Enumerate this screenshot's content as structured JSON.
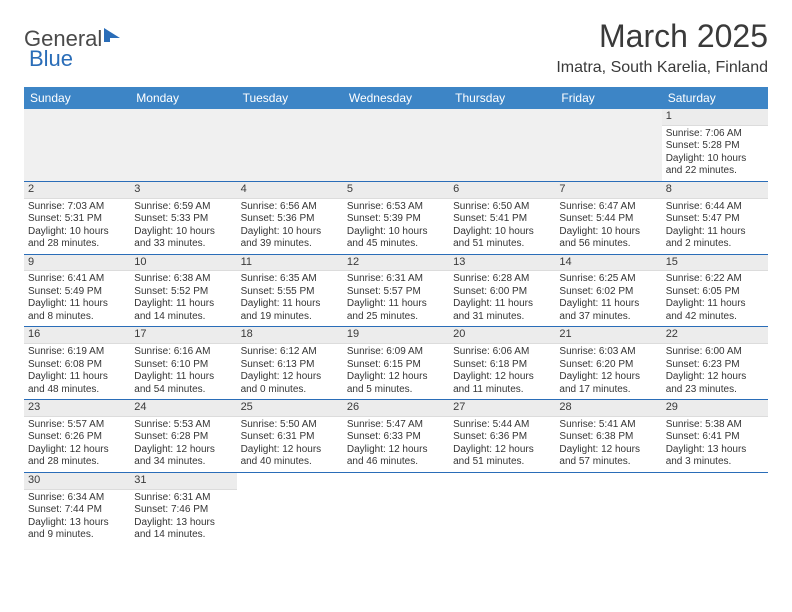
{
  "logo": {
    "text_a": "General",
    "text_b": "Blue"
  },
  "title": "March 2025",
  "location": "Imatra, South Karelia, Finland",
  "colors": {
    "header_bg": "#3d85c6",
    "header_text": "#ffffff",
    "row_divider": "#2a6db8",
    "daynum_bg": "#ececec",
    "text": "#353535",
    "logo_gray": "#4a4a4a",
    "logo_blue": "#2a6db8"
  },
  "weekdays": [
    "Sunday",
    "Monday",
    "Tuesday",
    "Wednesday",
    "Thursday",
    "Friday",
    "Saturday"
  ],
  "weeks": [
    [
      null,
      null,
      null,
      null,
      null,
      null,
      {
        "n": "1",
        "sr": "7:06 AM",
        "ss": "5:28 PM",
        "dl": "10 hours and 22 minutes."
      }
    ],
    [
      {
        "n": "2",
        "sr": "7:03 AM",
        "ss": "5:31 PM",
        "dl": "10 hours and 28 minutes."
      },
      {
        "n": "3",
        "sr": "6:59 AM",
        "ss": "5:33 PM",
        "dl": "10 hours and 33 minutes."
      },
      {
        "n": "4",
        "sr": "6:56 AM",
        "ss": "5:36 PM",
        "dl": "10 hours and 39 minutes."
      },
      {
        "n": "5",
        "sr": "6:53 AM",
        "ss": "5:39 PM",
        "dl": "10 hours and 45 minutes."
      },
      {
        "n": "6",
        "sr": "6:50 AM",
        "ss": "5:41 PM",
        "dl": "10 hours and 51 minutes."
      },
      {
        "n": "7",
        "sr": "6:47 AM",
        "ss": "5:44 PM",
        "dl": "10 hours and 56 minutes."
      },
      {
        "n": "8",
        "sr": "6:44 AM",
        "ss": "5:47 PM",
        "dl": "11 hours and 2 minutes."
      }
    ],
    [
      {
        "n": "9",
        "sr": "6:41 AM",
        "ss": "5:49 PM",
        "dl": "11 hours and 8 minutes."
      },
      {
        "n": "10",
        "sr": "6:38 AM",
        "ss": "5:52 PM",
        "dl": "11 hours and 14 minutes."
      },
      {
        "n": "11",
        "sr": "6:35 AM",
        "ss": "5:55 PM",
        "dl": "11 hours and 19 minutes."
      },
      {
        "n": "12",
        "sr": "6:31 AM",
        "ss": "5:57 PM",
        "dl": "11 hours and 25 minutes."
      },
      {
        "n": "13",
        "sr": "6:28 AM",
        "ss": "6:00 PM",
        "dl": "11 hours and 31 minutes."
      },
      {
        "n": "14",
        "sr": "6:25 AM",
        "ss": "6:02 PM",
        "dl": "11 hours and 37 minutes."
      },
      {
        "n": "15",
        "sr": "6:22 AM",
        "ss": "6:05 PM",
        "dl": "11 hours and 42 minutes."
      }
    ],
    [
      {
        "n": "16",
        "sr": "6:19 AM",
        "ss": "6:08 PM",
        "dl": "11 hours and 48 minutes."
      },
      {
        "n": "17",
        "sr": "6:16 AM",
        "ss": "6:10 PM",
        "dl": "11 hours and 54 minutes."
      },
      {
        "n": "18",
        "sr": "6:12 AM",
        "ss": "6:13 PM",
        "dl": "12 hours and 0 minutes."
      },
      {
        "n": "19",
        "sr": "6:09 AM",
        "ss": "6:15 PM",
        "dl": "12 hours and 5 minutes."
      },
      {
        "n": "20",
        "sr": "6:06 AM",
        "ss": "6:18 PM",
        "dl": "12 hours and 11 minutes."
      },
      {
        "n": "21",
        "sr": "6:03 AM",
        "ss": "6:20 PM",
        "dl": "12 hours and 17 minutes."
      },
      {
        "n": "22",
        "sr": "6:00 AM",
        "ss": "6:23 PM",
        "dl": "12 hours and 23 minutes."
      }
    ],
    [
      {
        "n": "23",
        "sr": "5:57 AM",
        "ss": "6:26 PM",
        "dl": "12 hours and 28 minutes."
      },
      {
        "n": "24",
        "sr": "5:53 AM",
        "ss": "6:28 PM",
        "dl": "12 hours and 34 minutes."
      },
      {
        "n": "25",
        "sr": "5:50 AM",
        "ss": "6:31 PM",
        "dl": "12 hours and 40 minutes."
      },
      {
        "n": "26",
        "sr": "5:47 AM",
        "ss": "6:33 PM",
        "dl": "12 hours and 46 minutes."
      },
      {
        "n": "27",
        "sr": "5:44 AM",
        "ss": "6:36 PM",
        "dl": "12 hours and 51 minutes."
      },
      {
        "n": "28",
        "sr": "5:41 AM",
        "ss": "6:38 PM",
        "dl": "12 hours and 57 minutes."
      },
      {
        "n": "29",
        "sr": "5:38 AM",
        "ss": "6:41 PM",
        "dl": "13 hours and 3 minutes."
      }
    ],
    [
      {
        "n": "30",
        "sr": "6:34 AM",
        "ss": "7:44 PM",
        "dl": "13 hours and 9 minutes."
      },
      {
        "n": "31",
        "sr": "6:31 AM",
        "ss": "7:46 PM",
        "dl": "13 hours and 14 minutes."
      },
      null,
      null,
      null,
      null,
      null
    ]
  ],
  "labels": {
    "sunrise": "Sunrise: ",
    "sunset": "Sunset: ",
    "daylight": "Daylight: "
  }
}
